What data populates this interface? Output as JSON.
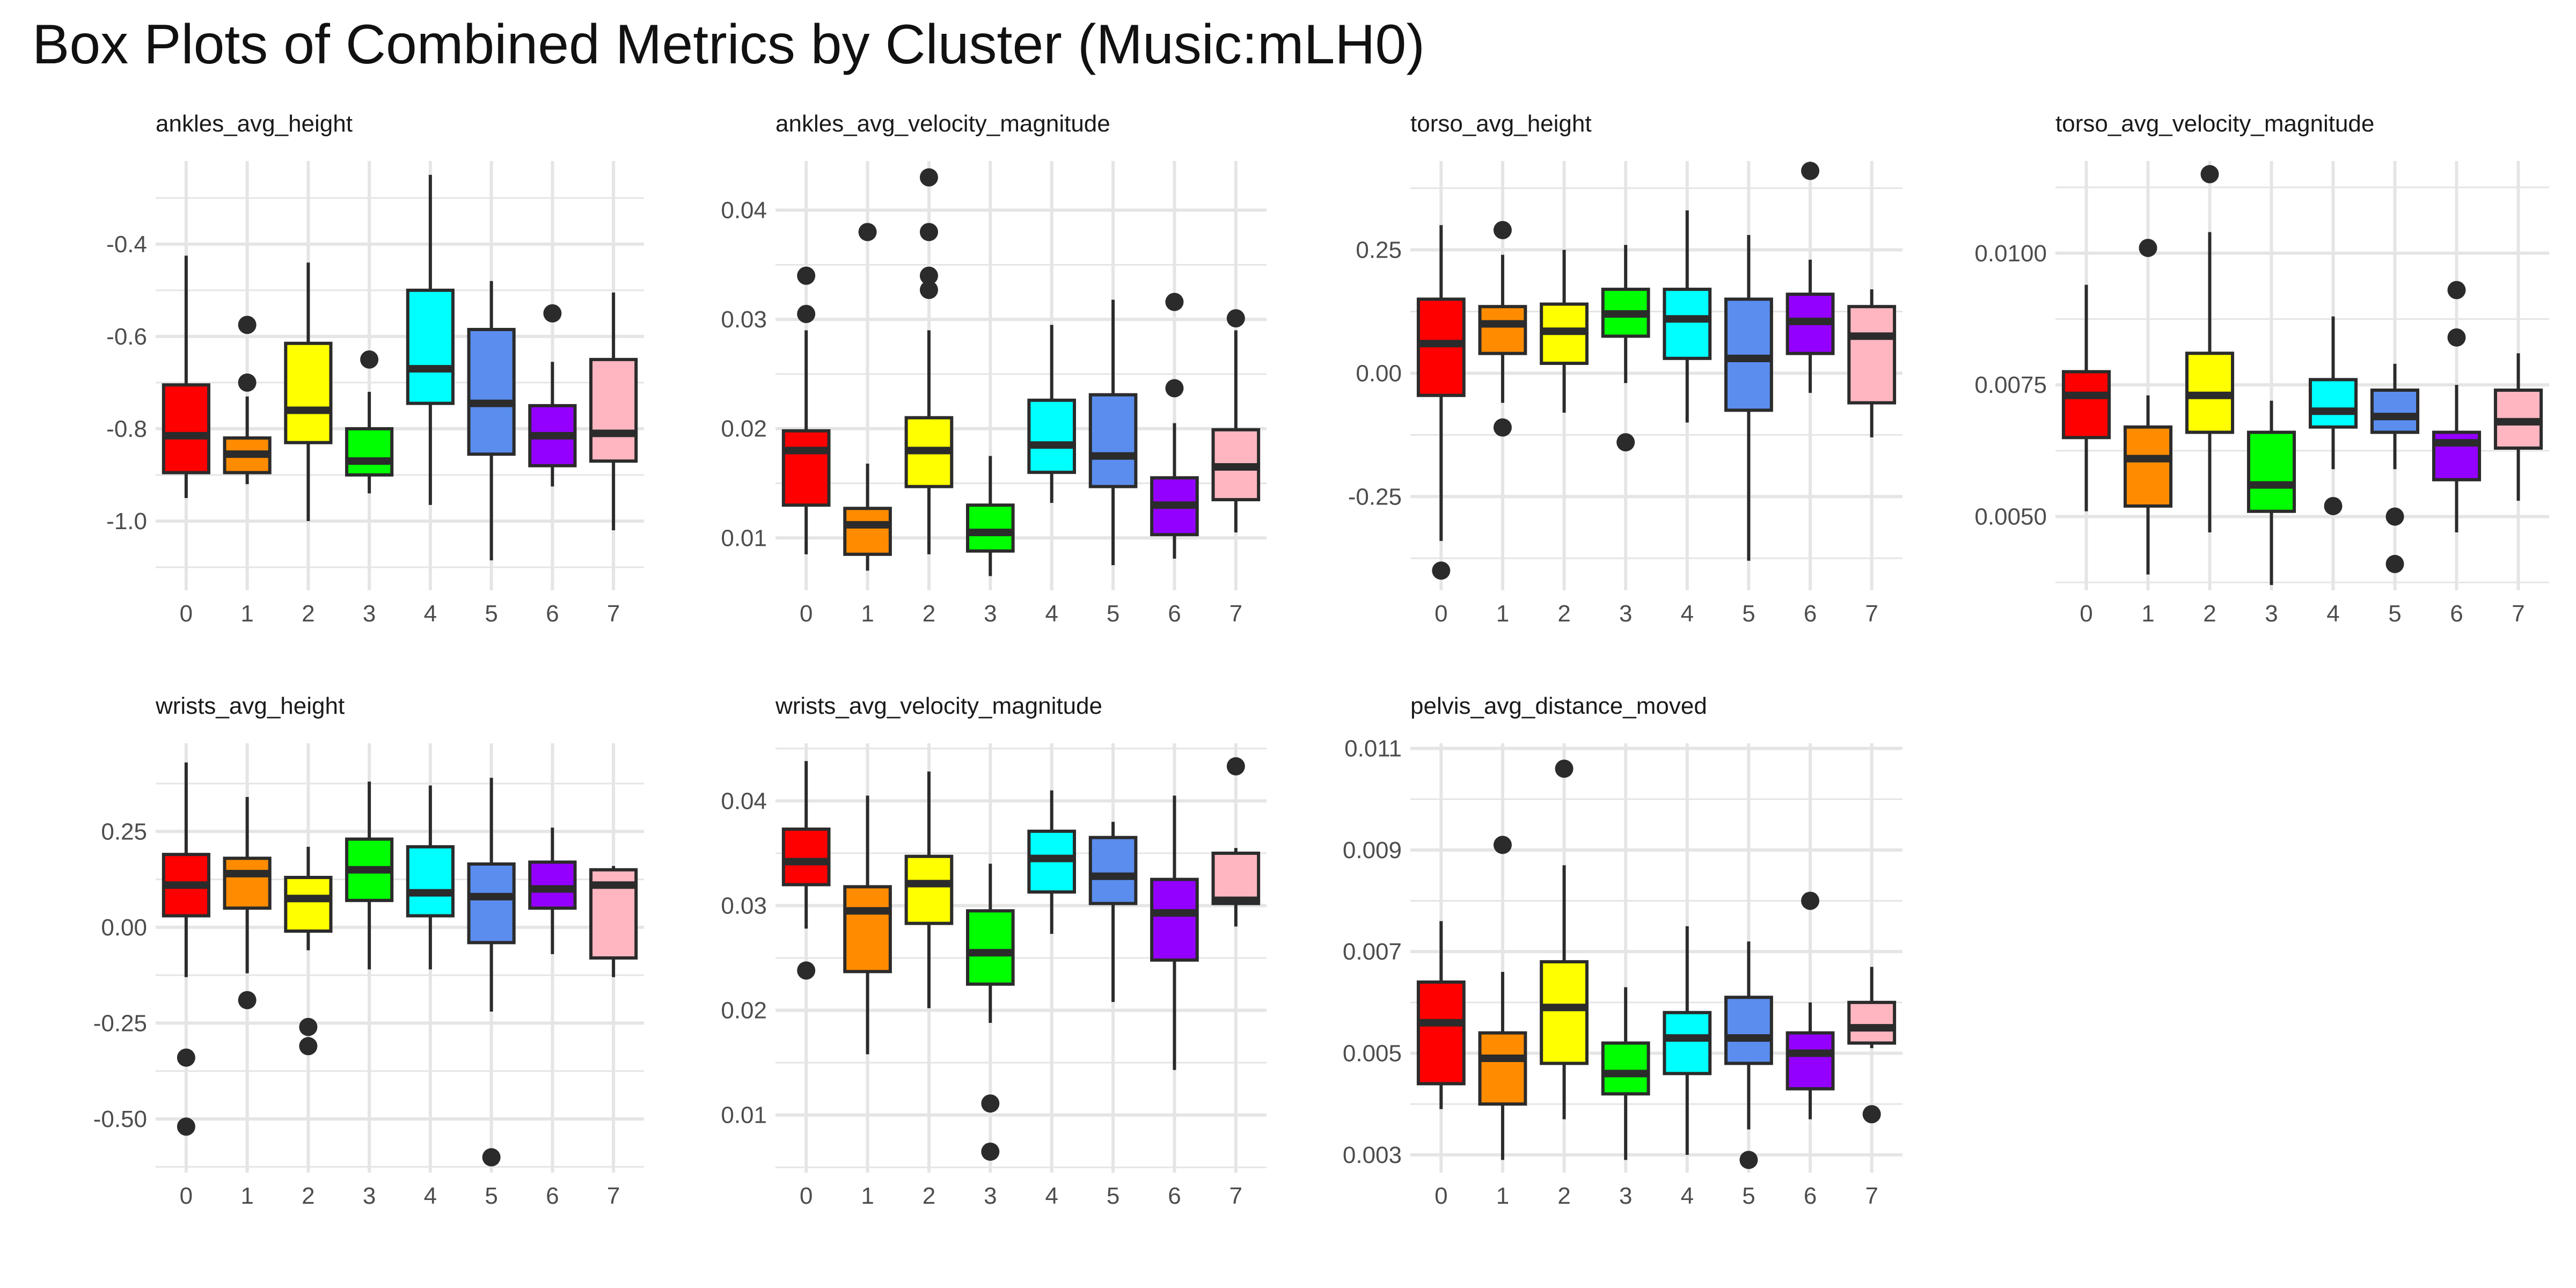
{
  "title": "Box Plots of Combined Metrics by Cluster (Music:mLH0)",
  "colors": {
    "clusters": [
      "#ff0000",
      "#ff8c00",
      "#ffff00",
      "#00ff00",
      "#00ffff",
      "#5b8def",
      "#9400ff",
      "#ffb6c1"
    ],
    "box_stroke": "#2b2b2b",
    "grid": "#e5e5e5"
  },
  "chart_data": [
    {
      "type": "boxplot",
      "title": "ankles_avg_height",
      "categories": [
        "0",
        "1",
        "2",
        "3",
        "4",
        "5",
        "6",
        "7"
      ],
      "ylim": [
        -1.15,
        -0.22
      ],
      "ticks": [
        -1.0,
        -0.8,
        -0.6,
        -0.4
      ],
      "tick_labels": [
        "-1.0",
        "-0.8",
        "-0.6",
        "-0.4"
      ],
      "boxes": [
        {
          "min": -0.95,
          "q1": -0.895,
          "median": -0.815,
          "q3": -0.705,
          "max": -0.425,
          "outliers": []
        },
        {
          "min": -0.92,
          "q1": -0.895,
          "median": -0.855,
          "q3": -0.82,
          "max": -0.73,
          "outliers": [
            -0.575,
            -0.7
          ]
        },
        {
          "min": -1.0,
          "q1": -0.83,
          "median": -0.76,
          "q3": -0.615,
          "max": -0.44,
          "outliers": []
        },
        {
          "min": -0.94,
          "q1": -0.9,
          "median": -0.87,
          "q3": -0.8,
          "max": -0.72,
          "outliers": [
            -0.65
          ]
        },
        {
          "min": -0.965,
          "q1": -0.745,
          "median": -0.67,
          "q3": -0.5,
          "max": -0.25,
          "outliers": []
        },
        {
          "min": -1.085,
          "q1": -0.855,
          "median": -0.745,
          "q3": -0.585,
          "max": -0.48,
          "outliers": []
        },
        {
          "min": -0.925,
          "q1": -0.88,
          "median": -0.815,
          "q3": -0.75,
          "max": -0.655,
          "outliers": [
            -0.55
          ]
        },
        {
          "min": -1.02,
          "q1": -0.87,
          "median": -0.81,
          "q3": -0.65,
          "max": -0.505,
          "outliers": []
        }
      ]
    },
    {
      "type": "boxplot",
      "title": "ankles_avg_velocity_magnitude",
      "categories": [
        "0",
        "1",
        "2",
        "3",
        "4",
        "5",
        "6",
        "7"
      ],
      "ylim": [
        0.0052,
        0.0445
      ],
      "ticks": [
        0.01,
        0.02,
        0.03,
        0.04
      ],
      "tick_labels": [
        "0.01",
        "0.02",
        "0.03",
        "0.04"
      ],
      "boxes": [
        {
          "min": 0.0085,
          "q1": 0.013,
          "median": 0.018,
          "q3": 0.0198,
          "max": 0.029,
          "outliers": [
            0.034,
            0.0305
          ]
        },
        {
          "min": 0.007,
          "q1": 0.0085,
          "median": 0.0112,
          "q3": 0.0127,
          "max": 0.0168,
          "outliers": [
            0.038
          ]
        },
        {
          "min": 0.0085,
          "q1": 0.0147,
          "median": 0.018,
          "q3": 0.021,
          "max": 0.029,
          "outliers": [
            0.043,
            0.038,
            0.034,
            0.0327
          ]
        },
        {
          "min": 0.0065,
          "q1": 0.0088,
          "median": 0.0105,
          "q3": 0.013,
          "max": 0.0175,
          "outliers": []
        },
        {
          "min": 0.0132,
          "q1": 0.016,
          "median": 0.0185,
          "q3": 0.0226,
          "max": 0.0295,
          "outliers": []
        },
        {
          "min": 0.0075,
          "q1": 0.0147,
          "median": 0.0175,
          "q3": 0.0231,
          "max": 0.0318,
          "outliers": []
        },
        {
          "min": 0.0081,
          "q1": 0.0103,
          "median": 0.013,
          "q3": 0.0155,
          "max": 0.0205,
          "outliers": [
            0.0316,
            0.0237
          ]
        },
        {
          "min": 0.0105,
          "q1": 0.0135,
          "median": 0.0165,
          "q3": 0.0199,
          "max": 0.029,
          "outliers": [
            0.0301
          ]
        }
      ]
    },
    {
      "type": "boxplot",
      "title": "torso_avg_height",
      "categories": [
        "0",
        "1",
        "2",
        "3",
        "4",
        "5",
        "6",
        "7"
      ],
      "ylim": [
        -0.44,
        0.43
      ],
      "ticks": [
        -0.25,
        0.0,
        0.25
      ],
      "tick_labels": [
        "-0.25",
        "0.00",
        "0.25"
      ],
      "boxes": [
        {
          "min": -0.34,
          "q1": -0.045,
          "median": 0.06,
          "q3": 0.15,
          "max": 0.3,
          "outliers": [
            -0.4
          ]
        },
        {
          "min": -0.06,
          "q1": 0.04,
          "median": 0.1,
          "q3": 0.135,
          "max": 0.24,
          "outliers": [
            0.29,
            -0.11
          ]
        },
        {
          "min": -0.08,
          "q1": 0.02,
          "median": 0.085,
          "q3": 0.14,
          "max": 0.25,
          "outliers": []
        },
        {
          "min": -0.02,
          "q1": 0.075,
          "median": 0.12,
          "q3": 0.17,
          "max": 0.26,
          "outliers": [
            -0.14
          ]
        },
        {
          "min": -0.1,
          "q1": 0.03,
          "median": 0.11,
          "q3": 0.17,
          "max": 0.33,
          "outliers": []
        },
        {
          "min": -0.38,
          "q1": -0.075,
          "median": 0.03,
          "q3": 0.15,
          "max": 0.28,
          "outliers": []
        },
        {
          "min": -0.04,
          "q1": 0.04,
          "median": 0.105,
          "q3": 0.16,
          "max": 0.23,
          "outliers": [
            0.41
          ]
        },
        {
          "min": -0.13,
          "q1": -0.06,
          "median": 0.075,
          "q3": 0.135,
          "max": 0.17,
          "outliers": []
        }
      ]
    },
    {
      "type": "boxplot",
      "title": "torso_avg_velocity_magnitude",
      "categories": [
        "0",
        "1",
        "2",
        "3",
        "4",
        "5",
        "6",
        "7"
      ],
      "ylim": [
        0.0036,
        0.01175
      ],
      "ticks": [
        0.005,
        0.0075,
        0.01
      ],
      "tick_labels": [
        "0.0050",
        "0.0075",
        "0.0100"
      ],
      "boxes": [
        {
          "min": 0.0051,
          "q1": 0.0065,
          "median": 0.0073,
          "q3": 0.00775,
          "max": 0.0094,
          "outliers": []
        },
        {
          "min": 0.0039,
          "q1": 0.0052,
          "median": 0.0061,
          "q3": 0.0067,
          "max": 0.0073,
          "outliers": [
            0.0101
          ]
        },
        {
          "min": 0.0047,
          "q1": 0.0066,
          "median": 0.0073,
          "q3": 0.0081,
          "max": 0.0104,
          "outliers": [
            0.0115
          ]
        },
        {
          "min": 0.0037,
          "q1": 0.0051,
          "median": 0.0056,
          "q3": 0.0066,
          "max": 0.0072,
          "outliers": []
        },
        {
          "min": 0.0059,
          "q1": 0.0067,
          "median": 0.007,
          "q3": 0.0076,
          "max": 0.0088,
          "outliers": [
            0.0052
          ]
        },
        {
          "min": 0.0059,
          "q1": 0.0066,
          "median": 0.0069,
          "q3": 0.0074,
          "max": 0.0079,
          "outliers": [
            0.005,
            0.0041
          ]
        },
        {
          "min": 0.0047,
          "q1": 0.0057,
          "median": 0.0064,
          "q3": 0.0066,
          "max": 0.0075,
          "outliers": [
            0.0093,
            0.0084
          ]
        },
        {
          "min": 0.0053,
          "q1": 0.0063,
          "median": 0.0068,
          "q3": 0.0074,
          "max": 0.0081,
          "outliers": []
        }
      ]
    },
    {
      "type": "boxplot",
      "title": "wrists_avg_height",
      "categories": [
        "0",
        "1",
        "2",
        "3",
        "4",
        "5",
        "6",
        "7"
      ],
      "ylim": [
        -0.64,
        0.48
      ],
      "ticks": [
        -0.5,
        -0.25,
        0.0,
        0.25
      ],
      "tick_labels": [
        "-0.50",
        "-0.25",
        "0.00",
        "0.25"
      ],
      "boxes": [
        {
          "min": -0.13,
          "q1": 0.03,
          "median": 0.11,
          "q3": 0.19,
          "max": 0.43,
          "outliers": [
            -0.34,
            -0.52
          ]
        },
        {
          "min": -0.12,
          "q1": 0.05,
          "median": 0.14,
          "q3": 0.18,
          "max": 0.34,
          "outliers": [
            -0.19
          ]
        },
        {
          "min": -0.06,
          "q1": -0.01,
          "median": 0.075,
          "q3": 0.13,
          "max": 0.21,
          "outliers": [
            -0.26,
            -0.31
          ]
        },
        {
          "min": -0.11,
          "q1": 0.07,
          "median": 0.15,
          "q3": 0.23,
          "max": 0.38,
          "outliers": []
        },
        {
          "min": -0.11,
          "q1": 0.03,
          "median": 0.09,
          "q3": 0.21,
          "max": 0.37,
          "outliers": []
        },
        {
          "min": -0.22,
          "q1": -0.04,
          "median": 0.08,
          "q3": 0.165,
          "max": 0.39,
          "outliers": [
            -0.6
          ]
        },
        {
          "min": -0.07,
          "q1": 0.05,
          "median": 0.1,
          "q3": 0.17,
          "max": 0.26,
          "outliers": []
        },
        {
          "min": -0.13,
          "q1": -0.08,
          "median": 0.11,
          "q3": 0.15,
          "max": 0.16,
          "outliers": []
        }
      ]
    },
    {
      "type": "boxplot",
      "title": "wrists_avg_velocity_magnitude",
      "categories": [
        "0",
        "1",
        "2",
        "3",
        "4",
        "5",
        "6",
        "7"
      ],
      "ylim": [
        0.0045,
        0.0455
      ],
      "ticks": [
        0.01,
        0.02,
        0.03,
        0.04
      ],
      "tick_labels": [
        "0.01",
        "0.02",
        "0.03",
        "0.04"
      ],
      "boxes": [
        {
          "min": 0.0278,
          "q1": 0.032,
          "median": 0.0342,
          "q3": 0.0373,
          "max": 0.0438,
          "outliers": [
            0.0238
          ]
        },
        {
          "min": 0.0158,
          "q1": 0.0237,
          "median": 0.0295,
          "q3": 0.0318,
          "max": 0.0405,
          "outliers": []
        },
        {
          "min": 0.0202,
          "q1": 0.0283,
          "median": 0.0321,
          "q3": 0.0347,
          "max": 0.0428,
          "outliers": []
        },
        {
          "min": 0.0188,
          "q1": 0.0225,
          "median": 0.0255,
          "q3": 0.0295,
          "max": 0.034,
          "outliers": [
            0.0111,
            0.0065
          ]
        },
        {
          "min": 0.0273,
          "q1": 0.0313,
          "median": 0.0345,
          "q3": 0.0371,
          "max": 0.041,
          "outliers": []
        },
        {
          "min": 0.0208,
          "q1": 0.0302,
          "median": 0.0328,
          "q3": 0.0365,
          "max": 0.038,
          "outliers": []
        },
        {
          "min": 0.0143,
          "q1": 0.0248,
          "median": 0.0293,
          "q3": 0.0325,
          "max": 0.0405,
          "outliers": []
        },
        {
          "min": 0.028,
          "q1": 0.0302,
          "median": 0.0305,
          "q3": 0.035,
          "max": 0.0355,
          "outliers": [
            0.0433
          ]
        }
      ]
    },
    {
      "type": "boxplot",
      "title": "pelvis_avg_distance_moved",
      "categories": [
        "0",
        "1",
        "2",
        "3",
        "4",
        "5",
        "6",
        "7"
      ],
      "ylim": [
        0.00265,
        0.0111
      ],
      "ticks": [
        0.003,
        0.005,
        0.007,
        0.009,
        0.011
      ],
      "tick_labels": [
        "0.003",
        "0.005",
        "0.007",
        "0.009",
        "0.011"
      ],
      "boxes": [
        {
          "min": 0.0039,
          "q1": 0.0044,
          "median": 0.0056,
          "q3": 0.0064,
          "max": 0.0076,
          "outliers": []
        },
        {
          "min": 0.0029,
          "q1": 0.004,
          "median": 0.0049,
          "q3": 0.0054,
          "max": 0.0066,
          "outliers": [
            0.0091
          ]
        },
        {
          "min": 0.0037,
          "q1": 0.0048,
          "median": 0.0059,
          "q3": 0.0068,
          "max": 0.0087,
          "outliers": [
            0.0106
          ]
        },
        {
          "min": 0.0029,
          "q1": 0.0042,
          "median": 0.0046,
          "q3": 0.0052,
          "max": 0.0063,
          "outliers": []
        },
        {
          "min": 0.003,
          "q1": 0.0046,
          "median": 0.0053,
          "q3": 0.0058,
          "max": 0.0075,
          "outliers": []
        },
        {
          "min": 0.0035,
          "q1": 0.0048,
          "median": 0.0053,
          "q3": 0.0061,
          "max": 0.0072,
          "outliers": [
            0.0029
          ]
        },
        {
          "min": 0.0037,
          "q1": 0.0043,
          "median": 0.005,
          "q3": 0.0054,
          "max": 0.006,
          "outliers": [
            0.008
          ]
        },
        {
          "min": 0.0051,
          "q1": 0.0052,
          "median": 0.0055,
          "q3": 0.006,
          "max": 0.0067,
          "outliers": [
            0.0038
          ]
        }
      ]
    }
  ]
}
